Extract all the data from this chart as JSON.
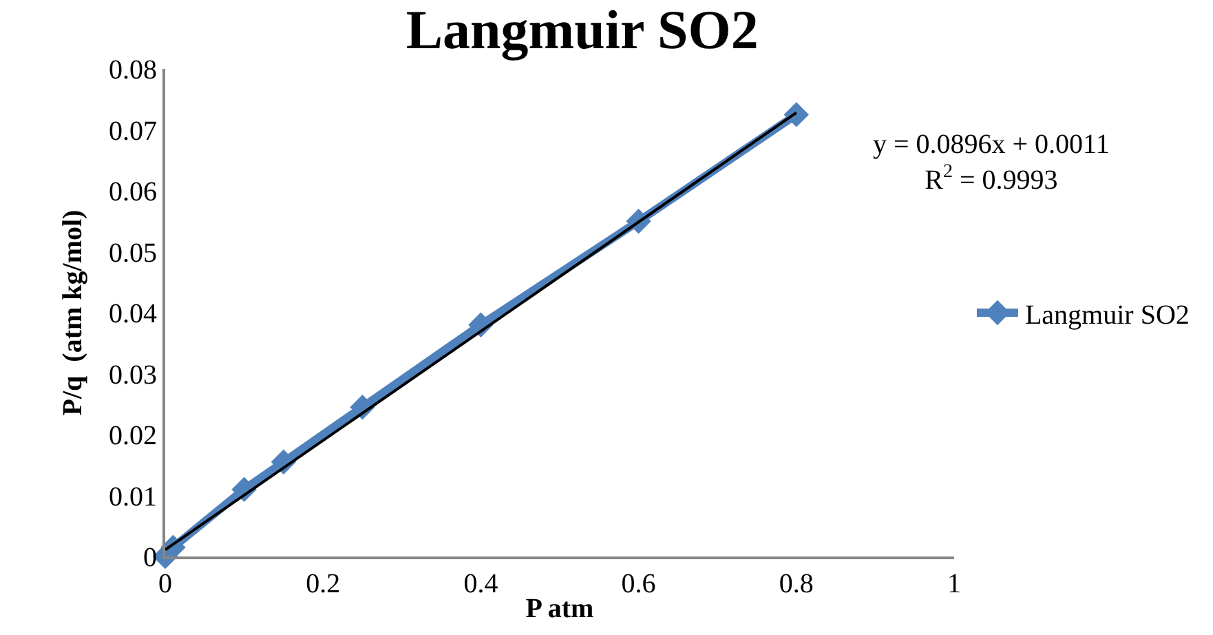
{
  "chart_data": {
    "type": "line",
    "title": "Langmuir SO2",
    "xlabel": "P atm",
    "ylabel": "P/q  (atm kg/mol)",
    "series": [
      {
        "name": "Langmuir SO2",
        "color": "#4f81bd",
        "x": [
          0,
          0.01,
          0.1,
          0.15,
          0.25,
          0.4,
          0.6,
          0.8
        ],
        "values": [
          0,
          0.0015,
          0.011,
          0.0155,
          0.0245,
          0.038,
          0.055,
          0.0725
        ],
        "marker": "diamond"
      },
      {
        "type": "line",
        "color": "#000000",
        "x": [
          0,
          0.8
        ],
        "values": [
          0.0011,
          0.0728
        ],
        "marker": "none"
      }
    ],
    "xlim": [
      0,
      1
    ],
    "xticks": [
      0,
      0.2,
      0.4,
      0.6,
      0.8,
      1
    ],
    "ylim": [
      0,
      0.08
    ],
    "yticks": [
      0,
      0.01,
      0.02,
      0.03,
      0.04,
      0.05,
      0.06,
      0.07,
      0.08
    ],
    "legend": "right",
    "line_style": "solid",
    "annotations": [
      "y = 0.0896x + 0.0011\nR$^{2}$ = 0.9993"
    ]
  }
}
